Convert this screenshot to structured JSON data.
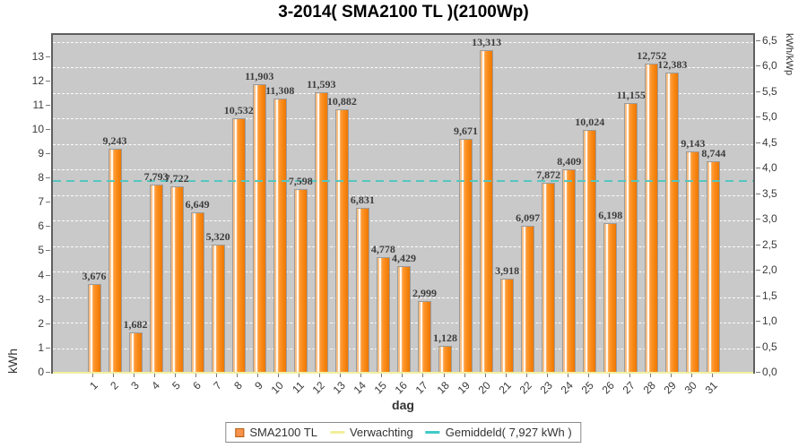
{
  "title": "3-2014( SMA2100 TL )(2100Wp)",
  "chart_data": {
    "type": "bar",
    "title": "3-2014( SMA2100 TL )(2100Wp)",
    "xlabel": "dag",
    "ylabel_left": "kWh",
    "ylabel_right": "kWh/kWp",
    "categories": [
      "1",
      "2",
      "3",
      "4",
      "5",
      "6",
      "7",
      "8",
      "9",
      "10",
      "11",
      "12",
      "13",
      "14",
      "15",
      "16",
      "17",
      "18",
      "19",
      "20",
      "21",
      "22",
      "23",
      "24",
      "25",
      "26",
      "27",
      "28",
      "29",
      "30",
      "31"
    ],
    "series": [
      {
        "name": "SMA2100 TL",
        "unit": "kWh",
        "values": [
          3.676,
          9.243,
          1.682,
          7.793,
          7.722,
          6.649,
          5.32,
          10.532,
          11.903,
          11.308,
          7.598,
          11.593,
          10.882,
          6.831,
          4.778,
          4.429,
          2.999,
          1.128,
          9.671,
          13.313,
          3.918,
          6.097,
          7.872,
          8.409,
          10.024,
          6.198,
          11.155,
          12.752,
          12.383,
          9.143,
          8.744
        ]
      }
    ],
    "value_labels": [
      "3,676",
      "9,243",
      "1,682",
      "7,793",
      "7,722",
      "6,649",
      "5,320",
      "10,532",
      "11,903",
      "11,308",
      "7,598",
      "11,593",
      "10,882",
      "6,831",
      "4,778",
      "4,429",
      "2,999",
      "1,128",
      "9,671",
      "13,313",
      "3,918",
      "6,097",
      "7,872",
      "8,409",
      "10,024",
      "6,198",
      "11,155",
      "12,752",
      "12,383",
      "9,143",
      "8,744"
    ],
    "average": {
      "name": "Gemiddeld",
      "value": 7.927,
      "label": "Gemiddeld( 7,927 kWh )"
    },
    "verwachting": {
      "name": "Verwachting",
      "value": 0
    },
    "ylim_left": [
      0,
      13.65
    ],
    "left_ticks": [
      "0",
      "1",
      "2",
      "3",
      "4",
      "5",
      "6",
      "7",
      "8",
      "9",
      "10",
      "11",
      "12",
      "13"
    ],
    "right_ticks": [
      "0,0",
      "0,5",
      "1,0",
      "1,5",
      "2,0",
      "2,5",
      "3,0",
      "3,5",
      "4,0",
      "4,5",
      "5,0",
      "5,5",
      "6,0",
      "6,5"
    ],
    "kwp": 2.1,
    "grid": "horizontal-dashed",
    "legend_position": "bottom",
    "colors": {
      "bar_light": "#f6b97a",
      "bar_main": "#ff9e3d",
      "bar_dark": "#ec7703",
      "bar_outline": "#9b9b9b",
      "average_line": "#55c6bf",
      "verwachting_line": "#f2efa0",
      "plot_bg": "#c9c9c9",
      "plot_border": "#5f5f5f",
      "grid_color": "#ffffff"
    }
  },
  "legend": {
    "items": [
      {
        "label": "SMA2100 TL",
        "type": "square",
        "color": "#f9924a"
      },
      {
        "label": "Verwachting",
        "type": "line",
        "color": "#f2ef9a"
      },
      {
        "label": "Gemiddeld( 7,927 kWh )",
        "type": "line",
        "color": "#3ec9c9"
      }
    ]
  }
}
